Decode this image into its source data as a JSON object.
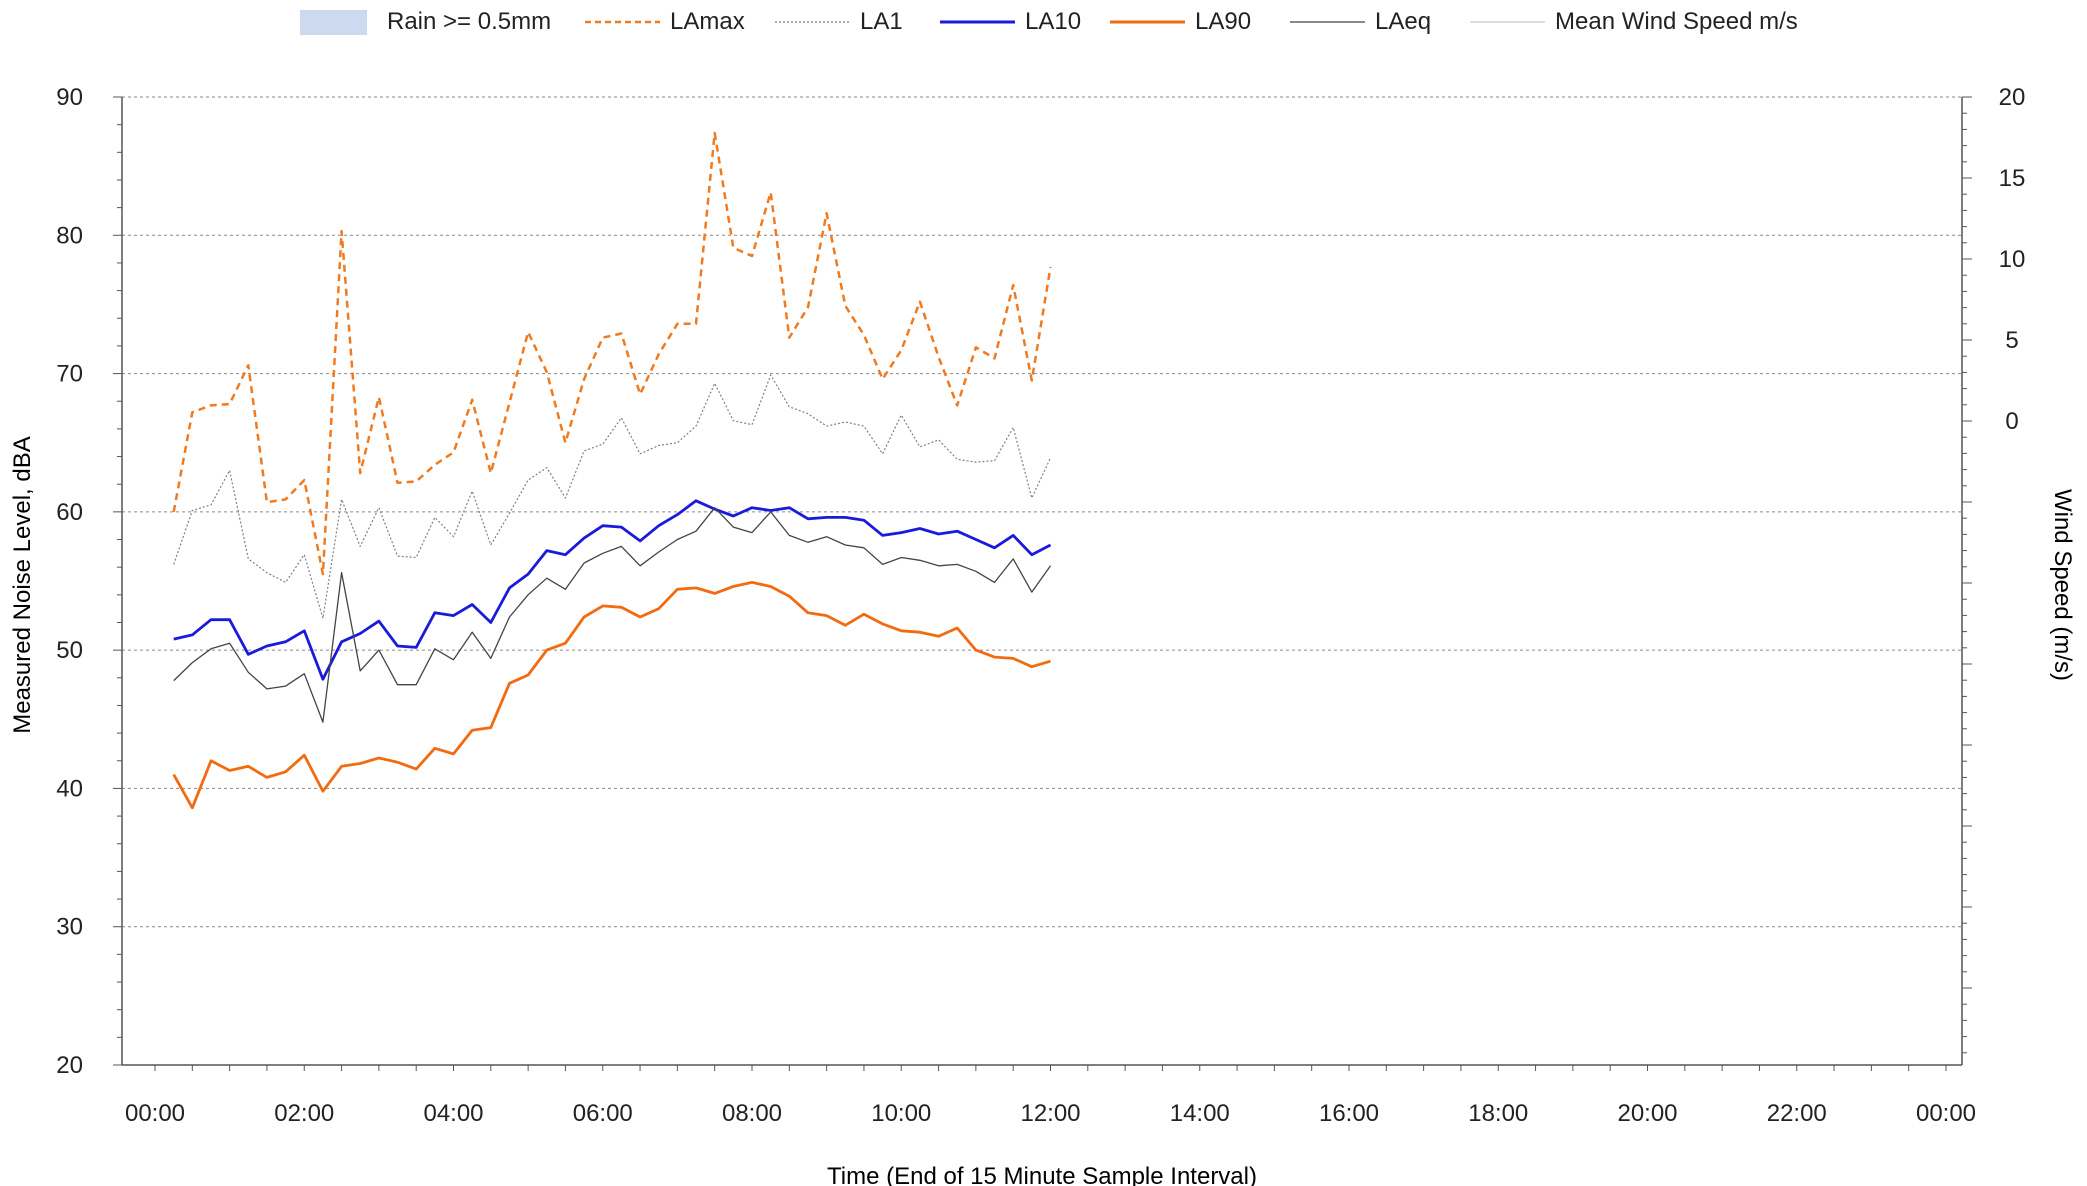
{
  "chart_data": {
    "type": "line",
    "xlabel": "Time (End of 15 Minute Sample Interval)",
    "ylabel": "Measured Noise Level, dBA",
    "y2label": "Wind Speed (m/s)",
    "ylim": [
      20,
      90
    ],
    "y2lim": [
      0,
      20
    ],
    "xlim_hours": [
      0,
      24
    ],
    "grid": "horizontal dotted",
    "legend_position": "top",
    "x_tick_labels": [
      "00:00",
      "02:00",
      "04:00",
      "06:00",
      "08:00",
      "10:00",
      "12:00",
      "14:00",
      "16:00",
      "18:00",
      "20:00",
      "22:00",
      "00:00"
    ],
    "y_tick_labels": [
      "20",
      "30",
      "40",
      "50",
      "60",
      "70",
      "80",
      "90"
    ],
    "y2_tick_labels": [
      "0",
      "5",
      "10",
      "15",
      "20"
    ],
    "legend": [
      {
        "name": "Rain >= 0.5mm",
        "style": "fill",
        "color": "#cdd9ee"
      },
      {
        "name": "LAmax",
        "style": "dashed",
        "color": "#f07a20"
      },
      {
        "name": "LA1",
        "style": "dotted",
        "color": "#777777"
      },
      {
        "name": "LA10",
        "style": "solid",
        "color": "#1a1adc"
      },
      {
        "name": "LA90",
        "style": "solid",
        "color": "#f26b10"
      },
      {
        "name": "LAeq",
        "style": "solid",
        "color": "#444444"
      },
      {
        "name": "Mean Wind Speed m/s",
        "style": "thin",
        "color": "#b8b8b8"
      }
    ],
    "x_hours": [
      0.25,
      0.5,
      0.75,
      1.0,
      1.25,
      1.5,
      1.75,
      2.0,
      2.25,
      2.5,
      2.75,
      3.0,
      3.25,
      3.5,
      3.75,
      4.0,
      4.25,
      4.5,
      4.75,
      5.0,
      5.25,
      5.5,
      5.75,
      6.0,
      6.25,
      6.5,
      6.75,
      7.0,
      7.25,
      7.5,
      7.75,
      8.0,
      8.25,
      8.5,
      8.75,
      9.0,
      9.25,
      9.5,
      9.75,
      10.0,
      10.25,
      10.5,
      10.75,
      11.0,
      11.25,
      11.5,
      11.75,
      12.0
    ],
    "series": [
      {
        "name": "LAmax",
        "color": "#f07a20",
        "dash": "7,5",
        "width": 2.5,
        "values": [
          60.0,
          67.2,
          67.7,
          67.8,
          70.6,
          60.7,
          60.9,
          62.3,
          55.5,
          80.3,
          62.8,
          68.3,
          62.1,
          62.2,
          63.4,
          64.3,
          68.1,
          62.8,
          67.9,
          73.0,
          70.1,
          65.0,
          69.6,
          72.6,
          72.9,
          68.5,
          71.4,
          73.6,
          73.6,
          87.4,
          79.1,
          78.5,
          83.1,
          72.6,
          74.8,
          81.6,
          74.9,
          72.8,
          69.6,
          71.7,
          75.2,
          71.2,
          67.7,
          71.9,
          71.1,
          76.4,
          69.5,
          77.7
        ]
      },
      {
        "name": "LA1",
        "color": "#808080",
        "dash": "2,2",
        "width": 1.2,
        "values": [
          56.2,
          60.1,
          60.5,
          63.0,
          56.6,
          55.6,
          54.9,
          56.9,
          52.3,
          60.9,
          57.5,
          60.3,
          56.8,
          56.7,
          59.6,
          58.2,
          61.5,
          57.6,
          59.9,
          62.3,
          63.2,
          61.0,
          64.4,
          64.9,
          66.8,
          64.2,
          64.8,
          65.0,
          66.2,
          69.3,
          66.6,
          66.3,
          69.9,
          67.6,
          67.1,
          66.2,
          66.5,
          66.2,
          64.2,
          67.0,
          64.7,
          65.2,
          63.8,
          63.6,
          63.7,
          66.1,
          61.0,
          63.9
        ]
      },
      {
        "name": "LA10",
        "color": "#1a1adc",
        "dash": "",
        "width": 2.8,
        "values": [
          50.8,
          51.1,
          52.2,
          52.2,
          49.7,
          50.3,
          50.6,
          51.4,
          47.9,
          50.6,
          51.2,
          52.1,
          50.3,
          50.2,
          52.7,
          52.5,
          53.3,
          52.0,
          54.5,
          55.5,
          57.2,
          56.9,
          58.1,
          59.0,
          58.9,
          57.9,
          59.0,
          59.8,
          60.8,
          60.2,
          59.7,
          60.3,
          60.1,
          60.3,
          59.5,
          59.6,
          59.6,
          59.4,
          58.3,
          58.5,
          58.8,
          58.4,
          58.6,
          58.0,
          57.4,
          58.3,
          56.9,
          57.6
        ]
      },
      {
        "name": "LA90",
        "color": "#f26b10",
        "dash": "",
        "width": 2.8,
        "values": [
          41.0,
          38.6,
          42.0,
          41.3,
          41.6,
          40.8,
          41.2,
          42.4,
          39.8,
          41.6,
          41.8,
          42.2,
          41.9,
          41.4,
          42.9,
          42.5,
          44.2,
          44.4,
          47.6,
          48.2,
          50.0,
          50.5,
          52.4,
          53.2,
          53.1,
          52.4,
          53.0,
          54.4,
          54.5,
          54.1,
          54.6,
          54.9,
          54.6,
          53.9,
          52.7,
          52.5,
          51.8,
          52.6,
          51.9,
          51.4,
          51.3,
          51.0,
          51.6,
          50.0,
          49.5,
          49.4,
          48.8,
          49.2
        ]
      },
      {
        "name": "LAeq",
        "color": "#444444",
        "dash": "",
        "width": 1.3,
        "values": [
          47.8,
          49.1,
          50.1,
          50.5,
          48.4,
          47.2,
          47.4,
          48.3,
          44.8,
          55.6,
          48.5,
          50.0,
          47.5,
          47.5,
          50.1,
          49.3,
          51.3,
          49.4,
          52.4,
          54.0,
          55.2,
          54.4,
          56.3,
          57.0,
          57.5,
          56.1,
          57.1,
          58.0,
          58.6,
          60.3,
          58.9,
          58.5,
          60.0,
          58.3,
          57.8,
          58.2,
          57.6,
          57.4,
          56.2,
          56.7,
          56.5,
          56.1,
          56.2,
          55.7,
          54.9,
          56.6,
          54.2,
          56.1
        ]
      },
      {
        "name": "Mean Wind Speed m/s",
        "color": "#b8b8b8",
        "dash": "",
        "width": 1,
        "values": []
      }
    ]
  }
}
